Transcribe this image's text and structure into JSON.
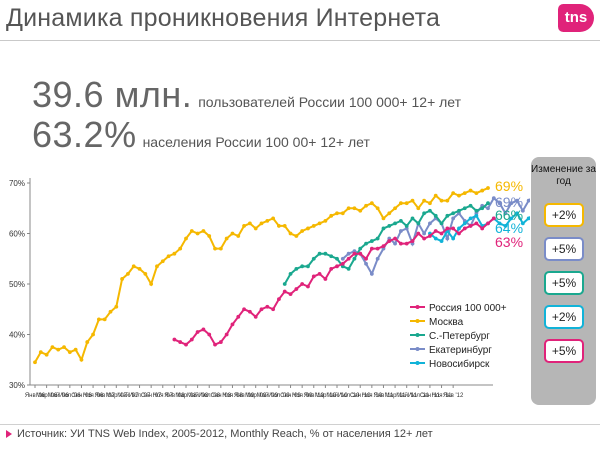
{
  "header": {
    "title": "Динамика проникновения Интернета",
    "logo_text": "tns"
  },
  "stats": {
    "users_value": "39.6 млн.",
    "users_desc": "пользователей России 100 000+ 12+ лет",
    "share_value": "63.2%",
    "share_desc": "населения России 100 00+ 12+ лет"
  },
  "change_panel": {
    "title": "Изменение за год",
    "items": [
      {
        "label": "+2%",
        "color": "#f5b800"
      },
      {
        "label": "+5%",
        "color": "#7a8cc8"
      },
      {
        "label": "+5%",
        "color": "#1aa88f"
      },
      {
        "label": "+2%",
        "color": "#11b3d8"
      },
      {
        "label": "+5%",
        "color": "#e0237a"
      }
    ]
  },
  "footer": {
    "source": "Источник: УИ TNS Web Index, 2005-2012, Monthly Reach, % от населения 12+ лет"
  },
  "chart_data": {
    "type": "line",
    "ylim": [
      30,
      70
    ],
    "y_ticks": [
      "30%",
      "40%",
      "50%",
      "60%",
      "70%"
    ],
    "x_ticks": [
      "Янв '06",
      "Мар '06",
      "Май '06",
      "Июл '06",
      "Сен '06",
      "Ноя '06",
      "Янв '07",
      "Мар '07",
      "Май '07",
      "Июл '07",
      "Сен '07",
      "Ноя '07",
      "Янв '08",
      "Мар '08",
      "Май '08",
      "Июл '08",
      "Сен '08",
      "Ноя '08",
      "Янв '09",
      "Мар '09",
      "Май '09",
      "Июл '09",
      "Сен '09",
      "Ноя '09",
      "Янв '10",
      "Мар '10",
      "Май '10",
      "Июл '10",
      "Сен '10",
      "Ноя '10",
      "Янв '11",
      "Мар '11",
      "Май '11",
      "Июл '11",
      "Сен '11",
      "Ноя '11",
      "Янв '12"
    ],
    "x_start": "2006-01",
    "series": [
      {
        "name": "Москва",
        "color": "#f5b800",
        "end_label": "69%",
        "values": [
          34.5,
          36.5,
          36,
          37.5,
          37,
          37.5,
          36.5,
          37,
          35,
          38.5,
          40,
          43,
          43,
          44.5,
          45.5,
          51,
          52,
          53.5,
          53,
          52,
          50,
          53.5,
          54.5,
          55.5,
          56,
          57,
          59,
          60.5,
          60,
          60.5,
          59.5,
          57,
          57,
          59,
          60,
          59.5,
          61.5,
          62,
          61,
          62,
          62.5,
          63,
          61.5,
          61.5,
          60,
          59.5,
          60.5,
          61,
          61.5,
          62,
          62.5,
          63.5,
          64,
          64,
          65,
          65,
          64.5,
          65.5,
          66,
          65,
          63,
          64,
          65,
          66,
          66,
          66.5,
          65,
          66.5,
          66,
          67.5,
          66.5,
          66.5,
          68,
          67.5,
          68,
          68.5,
          68,
          68.5,
          69
        ]
      },
      {
        "name": "Екатеринбург",
        "color": "#7a8cc8",
        "end_label": "69%",
        "values": [
          null,
          null,
          null,
          null,
          null,
          null,
          null,
          null,
          null,
          null,
          null,
          null,
          null,
          null,
          null,
          null,
          null,
          null,
          null,
          null,
          null,
          null,
          null,
          null,
          null,
          null,
          null,
          null,
          null,
          null,
          null,
          null,
          null,
          null,
          null,
          null,
          null,
          null,
          null,
          null,
          null,
          null,
          null,
          null,
          null,
          null,
          null,
          null,
          null,
          null,
          null,
          null,
          null,
          55,
          56,
          56.5,
          56,
          54,
          52,
          55,
          57,
          59,
          58,
          60.5,
          61,
          58,
          62,
          60,
          62,
          63,
          62,
          59,
          63,
          64,
          62.5,
          61.5,
          64,
          65.5,
          65,
          67,
          66,
          64,
          66,
          66.5,
          64.5,
          66.5,
          67.5,
          66,
          68,
          69
        ]
      },
      {
        "name": "С.-Петербург",
        "color": "#1aa88f",
        "end_label": "66%",
        "values": [
          null,
          null,
          null,
          null,
          null,
          null,
          null,
          null,
          null,
          null,
          null,
          null,
          null,
          null,
          null,
          null,
          null,
          null,
          null,
          null,
          null,
          null,
          null,
          null,
          null,
          null,
          null,
          null,
          null,
          null,
          null,
          null,
          null,
          null,
          null,
          null,
          null,
          null,
          null,
          null,
          null,
          null,
          null,
          50,
          52,
          53,
          53.5,
          53.5,
          55,
          56,
          56,
          55.5,
          55,
          53.5,
          53,
          55,
          57,
          58,
          58.5,
          59,
          61,
          61.5,
          62,
          62.5,
          61.5,
          63,
          62,
          64,
          64.5,
          63.5,
          62,
          63.5,
          64,
          64.5,
          65,
          65.5,
          64.5,
          65,
          66
        ]
      },
      {
        "name": "Новосибирск",
        "color": "#11b3d8",
        "end_label": "64%",
        "values": [
          null,
          null,
          null,
          null,
          null,
          null,
          null,
          null,
          null,
          null,
          null,
          null,
          null,
          null,
          null,
          null,
          null,
          null,
          null,
          null,
          null,
          null,
          null,
          null,
          null,
          null,
          null,
          null,
          null,
          null,
          null,
          null,
          null,
          null,
          null,
          null,
          null,
          null,
          null,
          null,
          null,
          null,
          null,
          null,
          null,
          null,
          null,
          null,
          null,
          null,
          null,
          null,
          null,
          null,
          null,
          null,
          null,
          null,
          null,
          null,
          null,
          null,
          null,
          null,
          null,
          null,
          null,
          null,
          60,
          59,
          58.5,
          60.5,
          59,
          61,
          62,
          63,
          63.5,
          61.5,
          62,
          63,
          62,
          61.5,
          63,
          64,
          62,
          63,
          64,
          63.5,
          64,
          64
        ]
      },
      {
        "name": "Россия 100 000+",
        "color": "#e0237a",
        "end_label": "63%",
        "values": [
          null,
          null,
          null,
          null,
          null,
          null,
          null,
          null,
          null,
          null,
          null,
          null,
          null,
          null,
          null,
          null,
          null,
          null,
          null,
          null,
          null,
          null,
          null,
          null,
          39,
          38.5,
          38,
          39,
          40.5,
          41,
          40,
          38,
          38.5,
          40,
          42,
          43.5,
          45,
          44.5,
          43.5,
          45,
          45.5,
          45,
          47,
          48.5,
          48,
          49,
          50,
          49.5,
          51.5,
          52,
          51,
          53,
          53.5,
          54,
          55,
          56,
          56,
          55,
          57,
          57,
          57.5,
          58.5,
          59,
          58,
          58,
          58.5,
          60,
          59,
          59.5,
          60.5,
          60,
          61,
          61,
          60,
          61,
          61.5,
          62,
          61,
          62,
          63
        ]
      }
    ],
    "legend": {
      "position": "bottom-right inside plot"
    }
  }
}
